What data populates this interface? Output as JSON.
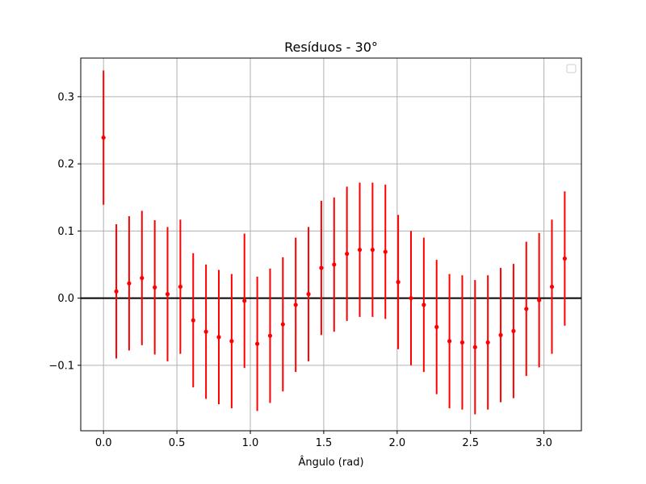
{
  "chart_data": {
    "type": "scatter",
    "title": "Resíduos - 30°",
    "xlabel": "Ângulo (rad)",
    "ylabel": "",
    "xlim": [
      -0.155,
      3.255
    ],
    "ylim": [
      -0.1975,
      0.3575
    ],
    "xticks": [
      {
        "value": 0.0,
        "label": "0.0"
      },
      {
        "value": 0.5,
        "label": "0.5"
      },
      {
        "value": 1.0,
        "label": "1.0"
      },
      {
        "value": 1.5,
        "label": "1.5"
      },
      {
        "value": 2.0,
        "label": "2.0"
      },
      {
        "value": 2.5,
        "label": "2.5"
      },
      {
        "value": 3.0,
        "label": "3.0"
      }
    ],
    "yticks": [
      {
        "value": -0.1,
        "label": "−0.1"
      },
      {
        "value": 0.0,
        "label": "0.0"
      },
      {
        "value": 0.1,
        "label": "0.1"
      },
      {
        "value": 0.2,
        "label": "0.2"
      },
      {
        "value": 0.3,
        "label": "0.3"
      }
    ],
    "grid": true,
    "legend": "upper right (empty)",
    "series_color": "#ff0000",
    "reference_line": {
      "y": 0.0,
      "color": "#000000"
    },
    "error": 0.1,
    "x": [
      0.0,
      0.0873,
      0.1745,
      0.2618,
      0.3491,
      0.4363,
      0.5236,
      0.6109,
      0.6981,
      0.7854,
      0.8727,
      0.9599,
      1.0472,
      1.1345,
      1.2217,
      1.309,
      1.3963,
      1.4835,
      1.5708,
      1.6581,
      1.7453,
      1.8326,
      1.9199,
      2.0071,
      2.0944,
      2.1817,
      2.2689,
      2.3562,
      2.4435,
      2.5307,
      2.618,
      2.7053,
      2.7925,
      2.8798,
      2.9671,
      3.0543,
      3.1416
    ],
    "y": [
      0.239,
      0.01,
      0.022,
      0.03,
      0.016,
      0.006,
      0.017,
      -0.033,
      -0.05,
      -0.058,
      -0.064,
      -0.004,
      -0.068,
      -0.056,
      -0.039,
      -0.01,
      0.006,
      0.045,
      0.05,
      0.066,
      0.072,
      0.072,
      0.069,
      0.024,
      0.0,
      -0.01,
      -0.043,
      -0.064,
      -0.066,
      -0.073,
      -0.066,
      -0.055,
      -0.049,
      -0.016,
      -0.003,
      0.017,
      0.059
    ]
  }
}
